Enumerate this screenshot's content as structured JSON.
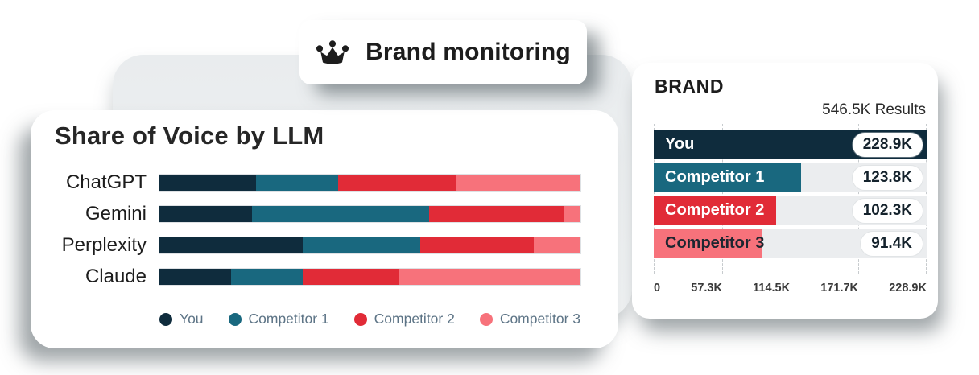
{
  "badge": {
    "icon": "crown",
    "label": "Brand monitoring"
  },
  "colors": {
    "you": "#0f2c3d",
    "competitor1": "#19687f",
    "competitor2": "#e12b37",
    "competitor3": "#f7727b",
    "panel_gray": "#edeff1",
    "track_gray": "#ebedef",
    "legend_text": "#5d7486"
  },
  "sov": {
    "title": "Share of Voice by LLM",
    "legend": [
      {
        "name": "You",
        "color": "#0f2c3d"
      },
      {
        "name": "Competitor 1",
        "color": "#19687f"
      },
      {
        "name": "Competitor 2",
        "color": "#e12b37"
      },
      {
        "name": "Competitor 3",
        "color": "#f7727b"
      }
    ],
    "rows": [
      {
        "label": "ChatGPT",
        "segments": [
          23,
          19.5,
          28,
          29.5
        ]
      },
      {
        "label": "Gemini",
        "segments": [
          22,
          42,
          32,
          4
        ]
      },
      {
        "label": "Perplexity",
        "segments": [
          34,
          28,
          27,
          11
        ]
      },
      {
        "label": "Claude",
        "segments": [
          17,
          17,
          23,
          43
        ]
      }
    ]
  },
  "brand": {
    "title": "BRAND",
    "results_label": "546.5K Results",
    "bars": [
      {
        "label": "You",
        "value": "228.9K",
        "pct": 100,
        "color": "#0f2c3d",
        "label_color": "#ffffff"
      },
      {
        "label": "Competitor 1",
        "value": "123.8K",
        "pct": 54.1,
        "color": "#19687f",
        "label_color": "#ffffff"
      },
      {
        "label": "Competitor 2",
        "value": "102.3K",
        "pct": 44.7,
        "color": "#e12b37",
        "label_color": "#ffffff"
      },
      {
        "label": "Competitor 3",
        "value": "91.4K",
        "pct": 39.9,
        "color": "#f7727b",
        "label_color": "#1d2630"
      }
    ],
    "axis_ticks": [
      "0",
      "57.3K",
      "114.5K",
      "171.7K",
      "228.9K"
    ],
    "gridline_pcts": [
      0,
      25,
      50,
      75,
      100
    ]
  },
  "chart_data": [
    {
      "type": "bar",
      "variant": "horizontal-stacked",
      "title": "Share of Voice by LLM",
      "categories": [
        "ChatGPT",
        "Gemini",
        "Perplexity",
        "Claude"
      ],
      "series": [
        {
          "name": "You",
          "values": [
            23,
            22,
            34,
            17
          ],
          "color": "#0f2c3d"
        },
        {
          "name": "Competitor 1",
          "values": [
            19.5,
            42,
            28,
            17
          ],
          "color": "#19687f"
        },
        {
          "name": "Competitor 2",
          "values": [
            28,
            32,
            27,
            23
          ],
          "color": "#e12b37"
        },
        {
          "name": "Competitor 3",
          "values": [
            29.5,
            4,
            11,
            43
          ],
          "color": "#f7727b"
        }
      ],
      "unit": "percent of row (estimated from pixels)",
      "xlim": [
        0,
        100
      ],
      "grid": false,
      "legend_position": "bottom"
    },
    {
      "type": "bar",
      "variant": "horizontal",
      "title": "BRAND",
      "subtitle": "546.5K Results",
      "categories": [
        "You",
        "Competitor 1",
        "Competitor 2",
        "Competitor 3"
      ],
      "values": [
        228900,
        123800,
        102300,
        91400
      ],
      "value_labels": [
        "228.9K",
        "123.8K",
        "102.3K",
        "91.4K"
      ],
      "x_ticks": [
        "0",
        "57.3K",
        "114.5K",
        "171.7K",
        "228.9K"
      ],
      "xlim": [
        0,
        228900
      ],
      "grid": true,
      "grid_style": "dashed-vertical"
    }
  ]
}
